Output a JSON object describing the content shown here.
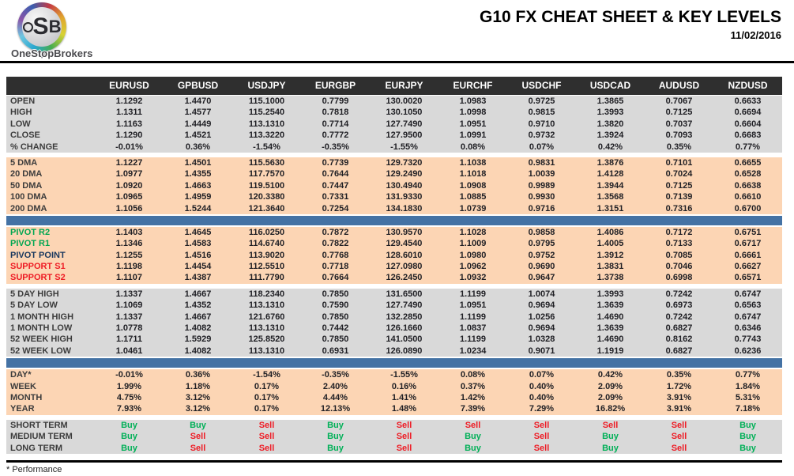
{
  "header": {
    "title": "G10 FX CHEAT SHEET & KEY LEVELS",
    "date": "11/02/2016",
    "logo": {
      "letters": [
        "o",
        "S",
        "B"
      ],
      "name": "OneStopBrokers"
    }
  },
  "footer": {
    "note": "* Performance"
  },
  "colors": {
    "header_bar": "#2f2f2f",
    "gray_band": "#d9d9d9",
    "peach_band": "#fcd5b4",
    "separator_blue": "#4472a4",
    "buy_green": "#00b057",
    "sell_red": "#ee1c25",
    "pivot_label_green": "#00a651",
    "support_label_red": "#ee1c25"
  },
  "table": {
    "columns": [
      "EURUSD",
      "GPBUSD",
      "USDJPY",
      "EURGBP",
      "EURJPY",
      "EURCHF",
      "USDCHF",
      "USDCAD",
      "AUDUSD",
      "NZDUSD"
    ],
    "blocks": [
      {
        "id": "ohlc",
        "style": "gray",
        "rows": [
          {
            "label": "OPEN",
            "values": [
              "1.1292",
              "1.4470",
              "115.1000",
              "0.7799",
              "130.0020",
              "1.0983",
              "0.9725",
              "1.3865",
              "0.7067",
              "0.6633"
            ]
          },
          {
            "label": "HIGH",
            "values": [
              "1.1311",
              "1.4577",
              "115.2540",
              "0.7818",
              "130.1050",
              "1.0998",
              "0.9815",
              "1.3993",
              "0.7125",
              "0.6694"
            ]
          },
          {
            "label": "LOW",
            "values": [
              "1.1163",
              "1.4449",
              "113.1310",
              "0.7714",
              "127.7490",
              "1.0951",
              "0.9710",
              "1.3820",
              "0.7037",
              "0.6604"
            ]
          },
          {
            "label": "CLOSE",
            "values": [
              "1.1290",
              "1.4521",
              "113.3220",
              "0.7772",
              "127.9500",
              "1.0991",
              "0.9732",
              "1.3924",
              "0.7093",
              "0.6683"
            ]
          },
          {
            "label": "% CHANGE",
            "values": [
              "-0.01%",
              "0.36%",
              "-1.54%",
              "-0.35%",
              "-1.55%",
              "0.08%",
              "0.07%",
              "0.42%",
              "0.35%",
              "0.77%"
            ]
          }
        ]
      },
      {
        "id": "dma",
        "style": "peach",
        "rows": [
          {
            "label": "5 DMA",
            "values": [
              "1.1227",
              "1.4501",
              "115.5630",
              "0.7739",
              "129.7320",
              "1.1038",
              "0.9831",
              "1.3876",
              "0.7101",
              "0.6655"
            ]
          },
          {
            "label": "20 DMA",
            "values": [
              "1.0977",
              "1.4355",
              "117.7570",
              "0.7644",
              "129.2490",
              "1.1018",
              "1.0039",
              "1.4128",
              "0.7024",
              "0.6528"
            ]
          },
          {
            "label": "50 DMA",
            "values": [
              "1.0920",
              "1.4663",
              "119.5100",
              "0.7447",
              "130.4940",
              "1.0908",
              "0.9989",
              "1.3944",
              "0.7125",
              "0.6638"
            ]
          },
          {
            "label": "100 DMA",
            "values": [
              "1.0965",
              "1.4959",
              "120.3380",
              "0.7331",
              "131.9330",
              "1.0885",
              "0.9930",
              "1.3568",
              "0.7139",
              "0.6610"
            ]
          },
          {
            "label": "200 DMA",
            "values": [
              "1.1056",
              "1.5244",
              "121.3640",
              "0.7254",
              "134.1830",
              "1.0739",
              "0.9716",
              "1.3151",
              "0.7316",
              "0.6700"
            ]
          }
        ]
      },
      {
        "separator": true
      },
      {
        "id": "pivots",
        "style": "peach",
        "rows": [
          {
            "label": "PIVOT R2",
            "label_class": "green",
            "values": [
              "1.1403",
              "1.4645",
              "116.0250",
              "0.7872",
              "130.9570",
              "1.1028",
              "0.9858",
              "1.4086",
              "0.7172",
              "0.6751"
            ]
          },
          {
            "label": "PIVOT R1",
            "label_class": "green",
            "values": [
              "1.1346",
              "1.4583",
              "114.6740",
              "0.7822",
              "129.4540",
              "1.1009",
              "0.9795",
              "1.4005",
              "0.7133",
              "0.6717"
            ]
          },
          {
            "label": "PIVOT POINT",
            "label_class": "navy",
            "values": [
              "1.1255",
              "1.4516",
              "113.9020",
              "0.7768",
              "128.6010",
              "1.0980",
              "0.9752",
              "1.3912",
              "0.7085",
              "0.6661"
            ]
          },
          {
            "label": "SUPPORT S1",
            "label_class": "red",
            "values": [
              "1.1198",
              "1.4454",
              "112.5510",
              "0.7718",
              "127.0980",
              "1.0962",
              "0.9690",
              "1.3831",
              "0.7046",
              "0.6627"
            ]
          },
          {
            "label": "SUPPORT S2",
            "label_class": "red",
            "values": [
              "1.1107",
              "1.4387",
              "111.7790",
              "0.7664",
              "126.2450",
              "1.0932",
              "0.9647",
              "1.3738",
              "0.6998",
              "0.6571"
            ]
          }
        ]
      },
      {
        "id": "ranges",
        "style": "gray",
        "rows": [
          {
            "label": "5 DAY HIGH",
            "values": [
              "1.1337",
              "1.4667",
              "118.2340",
              "0.7850",
              "131.6500",
              "1.1199",
              "1.0074",
              "1.3993",
              "0.7242",
              "0.6747"
            ]
          },
          {
            "label": "5 DAY LOW",
            "values": [
              "1.1069",
              "1.4352",
              "113.1310",
              "0.7590",
              "127.7490",
              "1.0951",
              "0.9694",
              "1.3639",
              "0.6973",
              "0.6563"
            ]
          },
          {
            "label": "1 MONTH HIGH",
            "values": [
              "1.1337",
              "1.4667",
              "121.6760",
              "0.7850",
              "132.2850",
              "1.1199",
              "1.0256",
              "1.4690",
              "0.7242",
              "0.6747"
            ]
          },
          {
            "label": "1 MONTH LOW",
            "values": [
              "1.0778",
              "1.4082",
              "113.1310",
              "0.7442",
              "126.1660",
              "1.0837",
              "0.9694",
              "1.3639",
              "0.6827",
              "0.6346"
            ]
          },
          {
            "label": "52 WEEK HIGH",
            "values": [
              "1.1711",
              "1.5929",
              "125.8520",
              "0.7850",
              "141.0500",
              "1.1199",
              "1.0328",
              "1.4690",
              "0.8162",
              "0.7743"
            ]
          },
          {
            "label": "52 WEEK LOW",
            "values": [
              "1.0461",
              "1.4082",
              "113.1310",
              "0.6931",
              "126.0890",
              "1.0234",
              "0.9071",
              "1.1919",
              "0.6827",
              "0.6236"
            ]
          }
        ]
      },
      {
        "separator": true
      },
      {
        "id": "performance",
        "style": "peach",
        "rows": [
          {
            "label": "DAY*",
            "values": [
              "-0.01%",
              "0.36%",
              "-1.54%",
              "-0.35%",
              "-1.55%",
              "0.08%",
              "0.07%",
              "0.42%",
              "0.35%",
              "0.77%"
            ]
          },
          {
            "label": "WEEK",
            "values": [
              "1.99%",
              "1.18%",
              "0.17%",
              "2.40%",
              "0.16%",
              "0.37%",
              "0.40%",
              "2.09%",
              "1.72%",
              "1.84%"
            ]
          },
          {
            "label": "MONTH",
            "values": [
              "4.75%",
              "3.12%",
              "0.17%",
              "4.44%",
              "1.41%",
              "1.42%",
              "0.40%",
              "2.09%",
              "3.91%",
              "5.31%"
            ]
          },
          {
            "label": "YEAR",
            "values": [
              "7.93%",
              "3.12%",
              "0.17%",
              "12.13%",
              "1.48%",
              "7.39%",
              "7.29%",
              "16.82%",
              "3.91%",
              "7.18%"
            ]
          }
        ]
      },
      {
        "id": "signals",
        "style": "gray",
        "signals": true,
        "rows": [
          {
            "label": "SHORT TERM",
            "values": [
              "Buy",
              "Buy",
              "Sell",
              "Buy",
              "Sell",
              "Sell",
              "Sell",
              "Sell",
              "Sell",
              "Buy"
            ]
          },
          {
            "label": "MEDIUM TERM",
            "values": [
              "Buy",
              "Sell",
              "Sell",
              "Buy",
              "Sell",
              "Buy",
              "Sell",
              "Buy",
              "Sell",
              "Buy"
            ]
          },
          {
            "label": "LONG TERM",
            "values": [
              "Buy",
              "Sell",
              "Sell",
              "Buy",
              "Sell",
              "Buy",
              "Sell",
              "Buy",
              "Sell",
              "Buy"
            ]
          }
        ]
      }
    ]
  }
}
